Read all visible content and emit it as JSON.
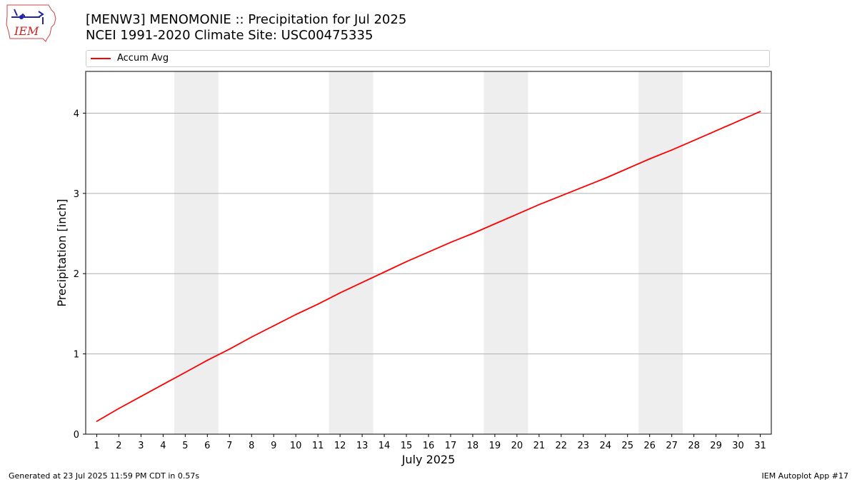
{
  "header": {
    "logo_text": "IEM",
    "title_line1": "[MENW3] MENOMONIE :: Precipitation for Jul 2025",
    "title_line2": "NCEI 1991-2020 Climate Site: USC00475335"
  },
  "legend": {
    "placement": "top (above plot)",
    "entries": [
      {
        "label": "Accum Avg",
        "color": "#ff0000"
      }
    ]
  },
  "footer": {
    "left": "Generated at 23 Jul 2025 11:59 PM CDT in 0.57s",
    "right": "IEM Autoplot App #17"
  },
  "chart_data": {
    "type": "line",
    "title": "[MENW3] MENOMONIE :: Precipitation for Jul 2025",
    "subtitle": "NCEI 1991-2020 Climate Site: USC00475335",
    "xlabel": "July 2025",
    "ylabel": "Precipitation [inch]",
    "x": [
      1,
      2,
      3,
      4,
      5,
      6,
      7,
      8,
      9,
      10,
      11,
      12,
      13,
      14,
      15,
      16,
      17,
      18,
      19,
      20,
      21,
      22,
      23,
      24,
      25,
      26,
      27,
      28,
      29,
      30,
      31
    ],
    "x_tick_labels": [
      "1",
      "2",
      "3",
      "4",
      "5",
      "6",
      "7",
      "8",
      "9",
      "10",
      "11",
      "12",
      "13",
      "14",
      "15",
      "16",
      "17",
      "18",
      "19",
      "20",
      "21",
      "22",
      "23",
      "24",
      "25",
      "26",
      "27",
      "28",
      "29",
      "30",
      "31"
    ],
    "xlim": [
      0.5,
      31.5
    ],
    "ylim": [
      0,
      4.52
    ],
    "y_ticks": [
      0,
      1,
      2,
      3,
      4
    ],
    "y_tick_labels": [
      "0",
      "1",
      "2",
      "3",
      "4"
    ],
    "grid": "horizontal",
    "weekend_shading": [
      [
        4.5,
        6.5
      ],
      [
        11.5,
        13.5
      ],
      [
        18.5,
        20.5
      ],
      [
        25.5,
        27.5
      ]
    ],
    "weekend_shading_color": "#eeeeee",
    "series": [
      {
        "name": "Accum Avg",
        "color": "#ff0000",
        "values": [
          0.16,
          0.32,
          0.47,
          0.62,
          0.77,
          0.92,
          1.06,
          1.21,
          1.35,
          1.49,
          1.62,
          1.76,
          1.89,
          2.02,
          2.15,
          2.27,
          2.39,
          2.5,
          2.62,
          2.74,
          2.86,
          2.97,
          3.08,
          3.19,
          3.31,
          3.43,
          3.54,
          3.66,
          3.78,
          3.9,
          4.02
        ]
      }
    ]
  }
}
